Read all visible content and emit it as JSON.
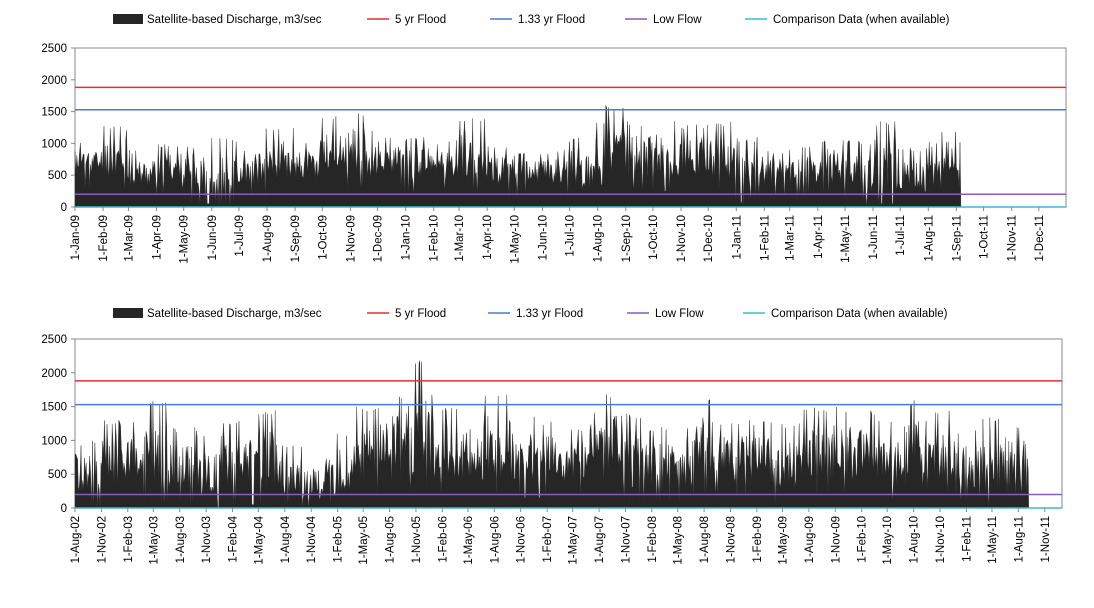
{
  "chart_data": [
    {
      "type": "area",
      "id": "top-chart",
      "legend": [
        {
          "label": "Satellite-based Discharge, m3/sec",
          "color": "#262626",
          "kind": "area"
        },
        {
          "label": "5 yr Flood",
          "color": "#e03030",
          "kind": "line"
        },
        {
          "label": "1.33 yr Flood",
          "color": "#4a7ad8",
          "kind": "line"
        },
        {
          "label": "Low Flow",
          "color": "#8a5cb8",
          "kind": "line"
        },
        {
          "label": "Comparison Data (when available)",
          "color": "#3cbccc",
          "kind": "line"
        }
      ],
      "ylim": [
        0,
        2500
      ],
      "yticks": [
        "0",
        "500",
        "1000",
        "1500",
        "2000",
        "2500"
      ],
      "xlabels": [
        "1-Jan-09",
        "1-Feb-09",
        "1-Mar-09",
        "1-Apr-09",
        "1-May-09",
        "1-Jun-09",
        "1-Jul-09",
        "1-Aug-09",
        "1-Sep-09",
        "1-Oct-09",
        "1-Nov-09",
        "1-Dec-09",
        "1-Jan-10",
        "1-Feb-10",
        "1-Mar-10",
        "1-Apr-10",
        "1-May-10",
        "1-Jun-10",
        "1-Jul-10",
        "1-Aug-10",
        "1-Sep-10",
        "1-Oct-10",
        "1-Nov-10",
        "1-Dec-10",
        "1-Jan-11",
        "1-Feb-11",
        "1-Mar-11",
        "1-Apr-11",
        "1-May-11",
        "1-Jun-11",
        "1-Jul-11",
        "1-Aug-11",
        "1-Sep-11",
        "1-Oct-11",
        "1-Nov-11",
        "1-Dec-11"
      ],
      "x_range": [
        "1-Jan-09",
        "31-Dec-11"
      ],
      "thresholds": {
        "flood_5yr": 1880,
        "flood_1_33yr": 1530,
        "low_flow": 200
      },
      "discharge_end": "6-Sep-11",
      "discharge_monthly_envelope": [
        {
          "month": "Jan-09",
          "low": 500,
          "high": 1050
        },
        {
          "month": "Feb-09",
          "low": 450,
          "high": 1270
        },
        {
          "month": "Mar-09",
          "low": 300,
          "high": 900
        },
        {
          "month": "Apr-09",
          "low": 400,
          "high": 1000
        },
        {
          "month": "May-09",
          "low": 250,
          "high": 1000
        },
        {
          "month": "Jun-09",
          "low": 0,
          "high": 1100
        },
        {
          "month": "Jul-09",
          "low": 350,
          "high": 900
        },
        {
          "month": "Aug-09",
          "low": 450,
          "high": 1250
        },
        {
          "month": "Sep-09",
          "low": 400,
          "high": 1050
        },
        {
          "month": "Oct-09",
          "low": 500,
          "high": 1450
        },
        {
          "month": "Nov-09",
          "low": 450,
          "high": 1500
        },
        {
          "month": "Dec-09",
          "low": 500,
          "high": 1100
        },
        {
          "month": "Jan-10",
          "low": 400,
          "high": 1100
        },
        {
          "month": "Feb-10",
          "low": 450,
          "high": 1050
        },
        {
          "month": "Mar-10",
          "low": 400,
          "high": 1400
        },
        {
          "month": "Apr-10",
          "low": 350,
          "high": 950
        },
        {
          "month": "May-10",
          "low": 350,
          "high": 850
        },
        {
          "month": "Jun-10",
          "low": 350,
          "high": 900
        },
        {
          "month": "Jul-10",
          "low": 250,
          "high": 1100
        },
        {
          "month": "Aug-10",
          "low": 550,
          "high": 1600
        },
        {
          "month": "Sep-10",
          "low": 450,
          "high": 1350
        },
        {
          "month": "Oct-10",
          "low": 450,
          "high": 1400
        },
        {
          "month": "Nov-10",
          "low": 500,
          "high": 1300
        },
        {
          "month": "Dec-10",
          "low": 450,
          "high": 1350
        },
        {
          "month": "Jan-11",
          "low": 0,
          "high": 1100
        },
        {
          "month": "Feb-11",
          "low": 350,
          "high": 900
        },
        {
          "month": "Mar-11",
          "low": 350,
          "high": 950
        },
        {
          "month": "Apr-11",
          "low": 350,
          "high": 1100
        },
        {
          "month": "May-11",
          "low": 100,
          "high": 1050
        },
        {
          "month": "Jun-11",
          "low": 250,
          "high": 1350
        },
        {
          "month": "Jul-11",
          "low": 200,
          "high": 950
        },
        {
          "month": "Aug-11",
          "low": 500,
          "high": 1200
        }
      ]
    },
    {
      "type": "area",
      "id": "bottom-chart",
      "legend": [
        {
          "label": "Satellite-based Discharge, m3/sec",
          "color": "#262626",
          "kind": "area"
        },
        {
          "label": "5 yr Flood",
          "color": "#e03030",
          "kind": "line"
        },
        {
          "label": "1.33 yr Flood",
          "color": "#4a7ad8",
          "kind": "line"
        },
        {
          "label": "Low Flow",
          "color": "#8a5cb8",
          "kind": "line"
        },
        {
          "label": "Comparison Data (when available)",
          "color": "#3cbccc",
          "kind": "line"
        }
      ],
      "ylim": [
        0,
        2500
      ],
      "yticks": [
        "0",
        "500",
        "1000",
        "1500",
        "2000",
        "2500"
      ],
      "xlabels": [
        "1-Aug-02",
        "1-Nov-02",
        "1-Feb-03",
        "1-May-03",
        "1-Aug-03",
        "1-Nov-03",
        "1-Feb-04",
        "1-May-04",
        "1-Aug-04",
        "1-Nov-04",
        "1-Feb-05",
        "1-May-05",
        "1-Aug-05",
        "1-Nov-05",
        "1-Feb-06",
        "1-May-06",
        "1-Aug-06",
        "1-Nov-06",
        "1-Feb-07",
        "1-May-07",
        "1-Aug-07",
        "1-Nov-07",
        "1-Feb-08",
        "1-May-08",
        "1-Aug-08",
        "1-Nov-08",
        "1-Feb-09",
        "1-May-09",
        "1-Aug-09",
        "1-Nov-09",
        "1-Feb-10",
        "1-May-10",
        "1-Aug-10",
        "1-Nov-10",
        "1-Feb-11",
        "1-May-11",
        "1-Aug-11",
        "1-Nov-11"
      ],
      "x_range": [
        "1-Aug-02",
        "31-Dec-11"
      ],
      "thresholds": {
        "flood_5yr": 1880,
        "flood_1_33yr": 1530,
        "low_flow": 200
      },
      "discharge_end": "6-Sep-11",
      "discharge_quarterly_envelope": [
        {
          "quarter": "Aug-02",
          "low": 250,
          "high": 1000
        },
        {
          "quarter": "Nov-02",
          "low": 200,
          "high": 1300
        },
        {
          "quarter": "Feb-03",
          "low": 300,
          "high": 1300
        },
        {
          "quarter": "May-03",
          "low": 250,
          "high": 1600
        },
        {
          "quarter": "Aug-03",
          "low": 250,
          "high": 1200
        },
        {
          "quarter": "Nov-03",
          "low": 150,
          "high": 1100
        },
        {
          "quarter": "Feb-04",
          "low": 250,
          "high": 1300
        },
        {
          "quarter": "May-04",
          "low": 250,
          "high": 1450
        },
        {
          "quarter": "Aug-04",
          "low": 150,
          "high": 950
        },
        {
          "quarter": "Nov-04",
          "low": 100,
          "high": 800
        },
        {
          "quarter": "Feb-05",
          "low": 150,
          "high": 1100
        },
        {
          "quarter": "May-05",
          "low": 350,
          "high": 1500
        },
        {
          "quarter": "Aug-05",
          "low": 550,
          "high": 1700
        },
        {
          "quarter": "Nov-05",
          "low": 450,
          "high": 2200
        },
        {
          "quarter": "Feb-06",
          "low": 400,
          "high": 1500
        },
        {
          "quarter": "May-06",
          "low": 350,
          "high": 1500
        },
        {
          "quarter": "Aug-06",
          "low": 400,
          "high": 1700
        },
        {
          "quarter": "Nov-06",
          "low": 350,
          "high": 1350
        },
        {
          "quarter": "Feb-07",
          "low": 350,
          "high": 1300
        },
        {
          "quarter": "May-07",
          "low": 350,
          "high": 1200
        },
        {
          "quarter": "Aug-07",
          "low": 550,
          "high": 1700
        },
        {
          "quarter": "Nov-07",
          "low": 300,
          "high": 1400
        },
        {
          "quarter": "Feb-08",
          "low": 300,
          "high": 1200
        },
        {
          "quarter": "May-08",
          "low": 300,
          "high": 1250
        },
        {
          "quarter": "Aug-08",
          "low": 400,
          "high": 1650
        },
        {
          "quarter": "Nov-08",
          "low": 350,
          "high": 1300
        },
        {
          "quarter": "Feb-09",
          "low": 350,
          "high": 1300
        },
        {
          "quarter": "May-09",
          "low": 200,
          "high": 1250
        },
        {
          "quarter": "Aug-09",
          "low": 400,
          "high": 1500
        },
        {
          "quarter": "Nov-09",
          "low": 400,
          "high": 1500
        },
        {
          "quarter": "Feb-10",
          "low": 350,
          "high": 1450
        },
        {
          "quarter": "May-10",
          "low": 300,
          "high": 1300
        },
        {
          "quarter": "Aug-10",
          "low": 500,
          "high": 1600
        },
        {
          "quarter": "Nov-10",
          "low": 400,
          "high": 1450
        },
        {
          "quarter": "Feb-11",
          "low": 300,
          "high": 1150
        },
        {
          "quarter": "May-11",
          "low": 200,
          "high": 1350
        },
        {
          "quarter": "Aug-11",
          "low": 400,
          "high": 1200
        }
      ]
    }
  ]
}
